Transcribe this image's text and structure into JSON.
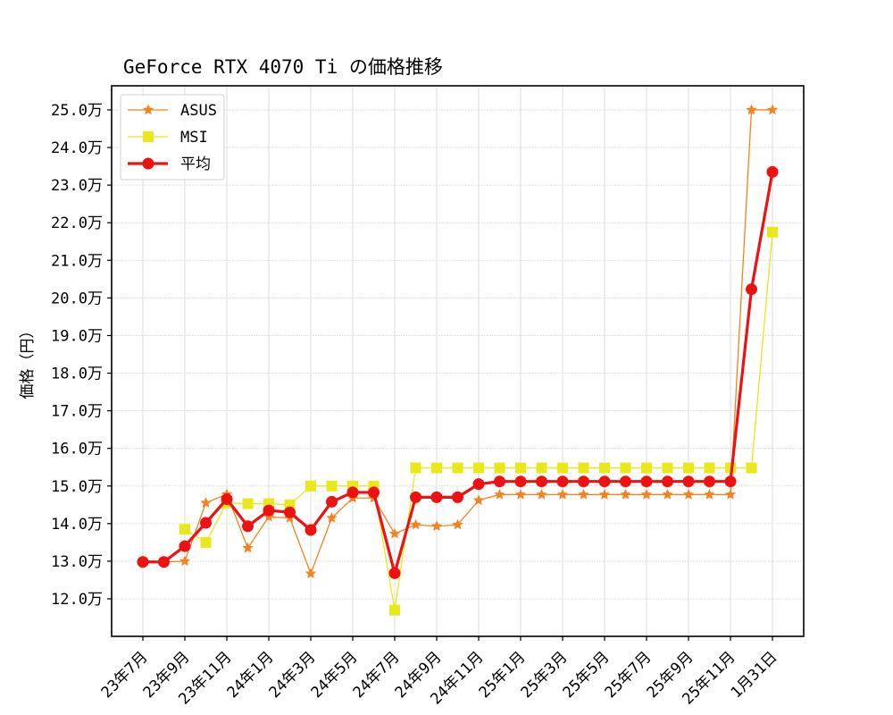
{
  "chart_data": {
    "type": "line",
    "title": "GeForce RTX 4070 Ti の価格推移",
    "xlabel": "",
    "ylabel": "価格（円）",
    "ylim": [
      11.05,
      25.65
    ],
    "y_unit": "万円",
    "grid": true,
    "legend_position": "upper left",
    "x_ticks": [
      "23年7月",
      "23年9月",
      "23年11月",
      "24年1月",
      "24年3月",
      "24年5月",
      "24年7月",
      "24年9月",
      "24年11月",
      "25年1月",
      "25年3月",
      "25年5月",
      "25年7月",
      "25年9月",
      "25年11月",
      "1月31日"
    ],
    "y_ticks": [
      "12.0万",
      "13.0万",
      "14.0万",
      "15.0万",
      "16.0万",
      "17.0万",
      "18.0万",
      "19.0万",
      "20.0万",
      "21.0万",
      "22.0万",
      "23.0万",
      "24.0万",
      "25.0万"
    ],
    "series": [
      {
        "name": "ASUS",
        "color": "#f5821f",
        "marker": "star",
        "values": [
          12.98,
          12.98,
          13.0,
          14.55,
          14.78,
          13.35,
          14.18,
          14.15,
          12.67,
          14.15,
          14.68,
          14.68,
          13.73,
          13.97,
          13.93,
          13.97,
          14.62,
          14.77,
          14.77,
          14.77,
          14.77,
          14.77,
          14.77,
          14.77,
          14.77,
          14.77,
          14.77,
          14.77,
          14.77,
          25.0,
          25.0
        ]
      },
      {
        "name": "MSI",
        "color": "#e8e81a",
        "marker": "square",
        "values": [
          null,
          null,
          13.85,
          13.5,
          14.55,
          14.53,
          14.53,
          14.5,
          15.0,
          15.0,
          15.0,
          15.0,
          11.7,
          15.48,
          15.48,
          15.48,
          15.48,
          15.48,
          15.48,
          15.48,
          15.48,
          15.48,
          15.48,
          15.48,
          15.48,
          15.48,
          15.48,
          15.48,
          15.48,
          15.48,
          21.75
        ]
      },
      {
        "name": "平均",
        "color": "#ee1111",
        "marker": "circle",
        "values": [
          12.98,
          12.98,
          13.4,
          14.02,
          14.65,
          13.93,
          14.35,
          14.3,
          13.83,
          14.58,
          14.83,
          14.83,
          12.68,
          14.7,
          14.7,
          14.7,
          15.05,
          15.12,
          15.12,
          15.12,
          15.12,
          15.12,
          15.12,
          15.12,
          15.12,
          15.12,
          15.12,
          15.12,
          15.12,
          20.23,
          23.35
        ]
      }
    ]
  }
}
